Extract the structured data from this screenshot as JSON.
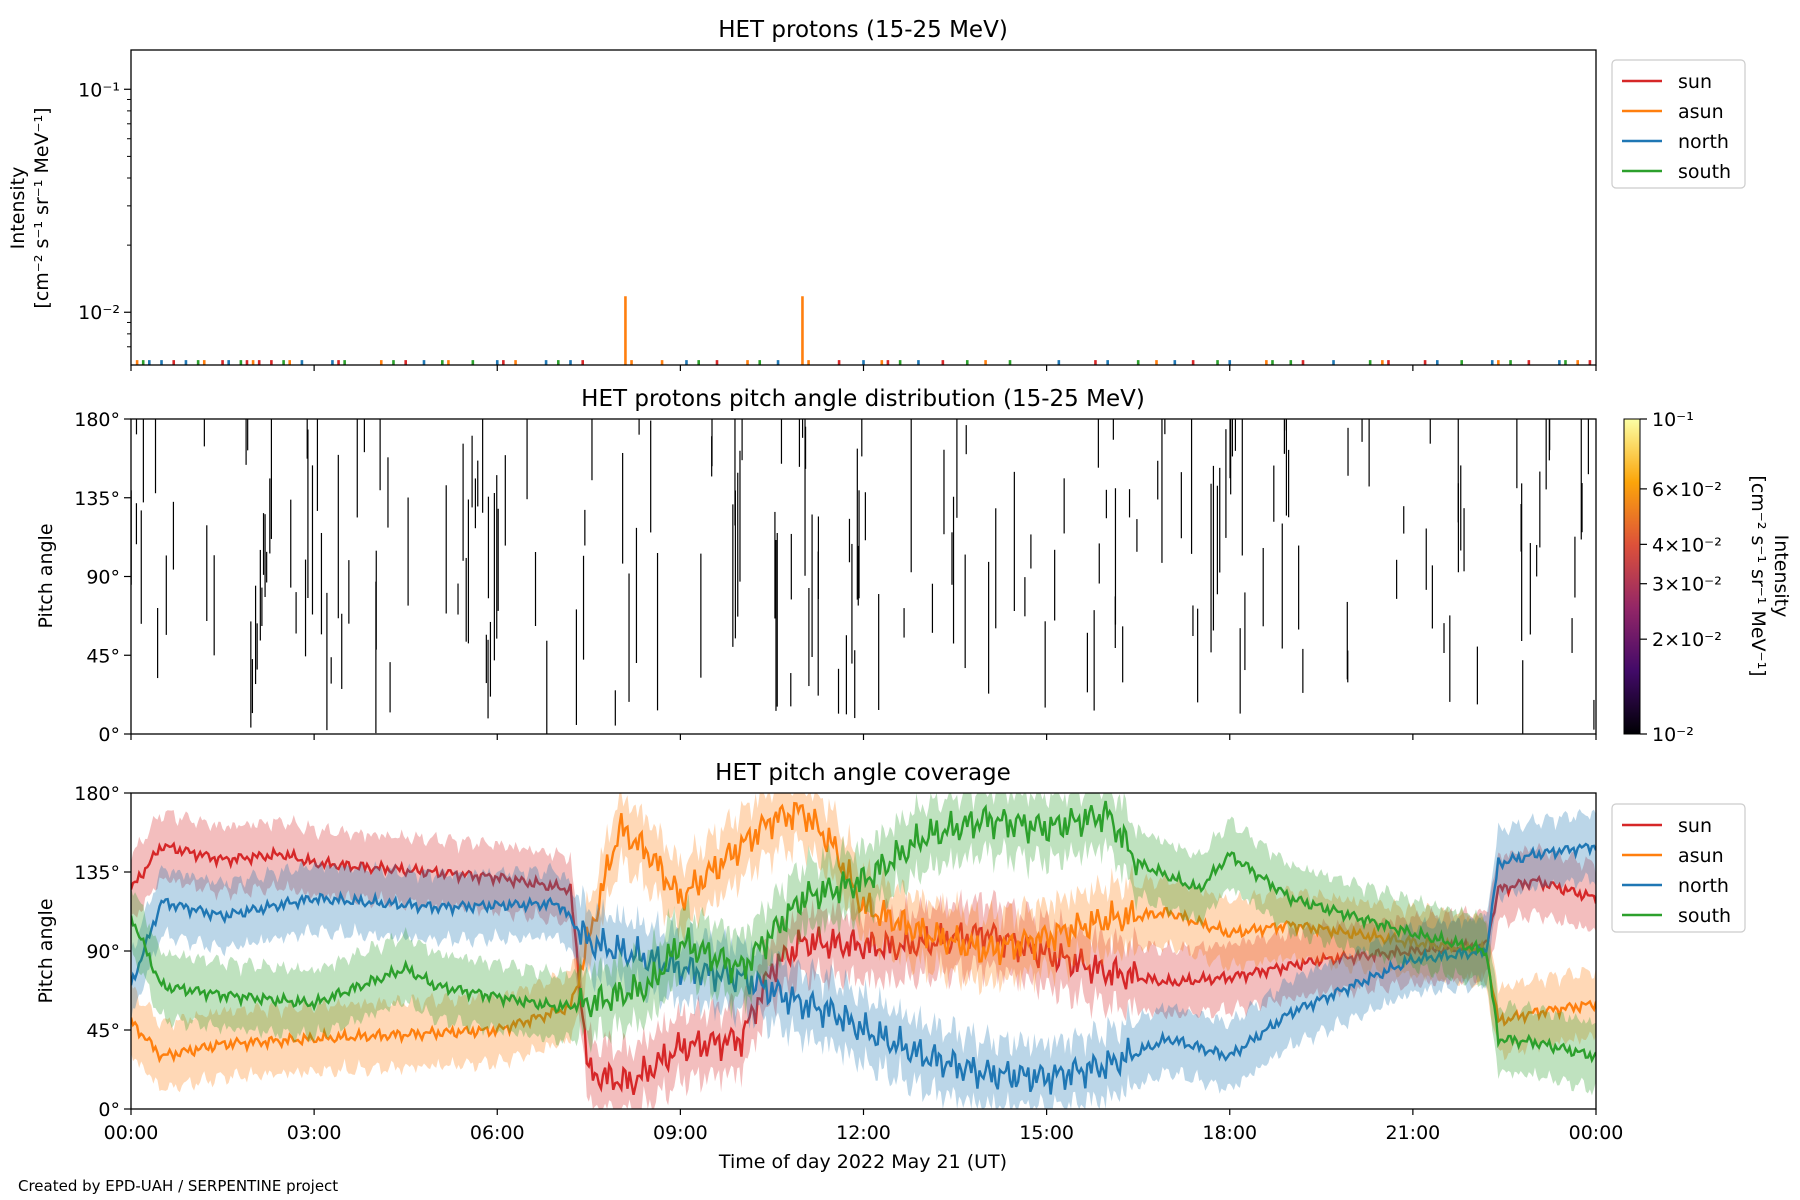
{
  "figure": {
    "xlabel": "Time of day 2022 May 21 (UT)",
    "footer": "Created by EPD-UAH / SERPENTINE project",
    "x_ticks": [
      "00:00",
      "03:00",
      "06:00",
      "09:00",
      "12:00",
      "15:00",
      "18:00",
      "21:00",
      "00:00"
    ],
    "colors": {
      "sun": "#d62728",
      "asun": "#ff7f0e",
      "north": "#1f77b4",
      "south": "#2ca02c"
    }
  },
  "chart_data": [
    {
      "type": "line",
      "title": "HET protons (15-25 MeV)",
      "ylabel_line1": "Intensity",
      "ylabel_line2": "[cm⁻² s⁻¹ sr⁻¹ MeV⁻¹]",
      "yscale": "log",
      "ylim": [
        0.0058,
        0.15
      ],
      "xlim_hours": [
        0,
        24
      ],
      "y_ticks": [
        {
          "value": 0.1,
          "label": "10⁻¹"
        },
        {
          "value": 0.01,
          "label": "10⁻²"
        }
      ],
      "legend": {
        "position": "upper-right-outside",
        "entries": [
          "sun",
          "asun",
          "north",
          "south"
        ]
      },
      "series": [
        {
          "name": "sun",
          "spike_hours": [
            0.7,
            1.5,
            1.9,
            2.1,
            2.3,
            3.4,
            4.5,
            6.1,
            7.4,
            9.6,
            11.6,
            12.4,
            13.3,
            15.8,
            17.4,
            19.2,
            20.6,
            21.2,
            22.9,
            23.9
          ],
          "value": 0.0061
        },
        {
          "name": "asun",
          "spike_hours": [
            0.1,
            1.2,
            2.0,
            2.6,
            4.1,
            5.2,
            6.3,
            8.2,
            8.7,
            10.1,
            11.1,
            12.3,
            14.0,
            16.8,
            18.6,
            20.5,
            22.4,
            23.7
          ],
          "value": 0.0061
        },
        {
          "name": "north",
          "spike_hours": [
            0.3,
            0.5,
            0.9,
            1.6,
            2.8,
            3.3,
            4.8,
            6.0,
            6.8,
            7.2,
            9.1,
            10.6,
            12.0,
            12.9,
            15.2,
            16.0,
            17.1,
            18.0,
            19.7,
            21.4,
            22.3,
            23.4
          ],
          "value": 0.0061
        },
        {
          "name": "south",
          "spike_hours": [
            0.2,
            1.1,
            1.8,
            2.5,
            3.5,
            4.3,
            5.1,
            5.6,
            7.0,
            9.3,
            10.3,
            12.6,
            13.7,
            14.4,
            16.5,
            17.8,
            18.7,
            19.0,
            20.3,
            21.8,
            22.6,
            23.5
          ],
          "value": 0.0061
        },
        {
          "name": "asun_peaks",
          "spike_hours": [
            8.1,
            11.0
          ],
          "value": 0.0118
        }
      ]
    },
    {
      "type": "heatmap",
      "title": "HET protons pitch angle distribution (15-25 MeV)",
      "ylabel": "Pitch angle",
      "ylim": [
        0,
        180
      ],
      "y_ticks": [
        "0°",
        "45°",
        "90°",
        "135°",
        "180°"
      ],
      "colorbar": {
        "label_line1": "Intensity",
        "label_line2": "[cm⁻² s⁻¹ sr⁻¹ MeV⁻¹]",
        "scale": "log",
        "range": [
          0.01,
          0.1
        ],
        "ticks": [
          {
            "value": 0.1,
            "label": "10⁻¹"
          },
          {
            "value": 0.06,
            "label": "6×10⁻²"
          },
          {
            "value": 0.04,
            "label": "4×10⁻²"
          },
          {
            "value": 0.03,
            "label": "3×10⁻²"
          },
          {
            "value": 0.02,
            "label": "2×10⁻²"
          },
          {
            "value": 0.01,
            "label": "10⁻²"
          }
        ],
        "colormap": "inferno"
      },
      "seed": 7
    },
    {
      "type": "area",
      "title": "HET pitch angle coverage",
      "ylabel": "Pitch angle",
      "ylim": [
        0,
        180
      ],
      "y_ticks": [
        "0°",
        "45°",
        "90°",
        "135°",
        "180°"
      ],
      "legend": {
        "position": "upper-right-outside",
        "entries": [
          "sun",
          "asun",
          "north",
          "south"
        ]
      },
      "series": [
        {
          "name": "sun",
          "half_width": 18,
          "keypoints": [
            [
              0,
              125
            ],
            [
              0.5,
              150
            ],
            [
              1.5,
              142
            ],
            [
              2.5,
              145
            ],
            [
              3.0,
              140
            ],
            [
              6.0,
              132
            ],
            [
              7.2,
              125
            ],
            [
              7.5,
              20
            ],
            [
              8.2,
              15
            ],
            [
              9.0,
              35
            ],
            [
              10.0,
              40
            ],
            [
              10.5,
              80
            ],
            [
              11.0,
              95
            ],
            [
              12.5,
              92
            ],
            [
              14.0,
              100
            ],
            [
              15.0,
              88
            ],
            [
              16.0,
              78
            ],
            [
              17.0,
              72
            ],
            [
              18.0,
              75
            ],
            [
              19.5,
              85
            ],
            [
              21.0,
              90
            ],
            [
              22.2,
              93
            ],
            [
              22.4,
              125
            ],
            [
              23.0,
              130
            ],
            [
              24.0,
              120
            ]
          ]
        },
        {
          "name": "asun",
          "half_width": 18,
          "keypoints": [
            [
              0,
              50
            ],
            [
              0.5,
              30
            ],
            [
              1.5,
              37
            ],
            [
              3.0,
              40
            ],
            [
              6.0,
              45
            ],
            [
              7.2,
              58
            ],
            [
              7.6,
              110
            ],
            [
              8.0,
              160
            ],
            [
              8.5,
              145
            ],
            [
              9.0,
              120
            ],
            [
              10.0,
              150
            ],
            [
              10.5,
              165
            ],
            [
              11.0,
              170
            ],
            [
              11.5,
              150
            ],
            [
              12.0,
              115
            ],
            [
              13.0,
              100
            ],
            [
              14.0,
              90
            ],
            [
              15.0,
              98
            ],
            [
              16.0,
              108
            ],
            [
              17.0,
              112
            ],
            [
              18.0,
              100
            ],
            [
              19.0,
              105
            ],
            [
              21.0,
              95
            ],
            [
              22.2,
              90
            ],
            [
              22.4,
              50
            ],
            [
              23.0,
              55
            ],
            [
              24.0,
              60
            ]
          ]
        },
        {
          "name": "north",
          "half_width": 18,
          "keypoints": [
            [
              0,
              70
            ],
            [
              0.5,
              118
            ],
            [
              1.5,
              110
            ],
            [
              3.0,
              120
            ],
            [
              5.0,
              115
            ],
            [
              7.0,
              117
            ],
            [
              7.5,
              95
            ],
            [
              8.5,
              85
            ],
            [
              9.0,
              80
            ],
            [
              10.0,
              75
            ],
            [
              11.0,
              60
            ],
            [
              11.5,
              55
            ],
            [
              12.0,
              45
            ],
            [
              13.0,
              30
            ],
            [
              14.0,
              20
            ],
            [
              15.0,
              18
            ],
            [
              16.0,
              25
            ],
            [
              17.0,
              40
            ],
            [
              18.0,
              30
            ],
            [
              19.0,
              55
            ],
            [
              20.0,
              70
            ],
            [
              21.0,
              85
            ],
            [
              22.2,
              90
            ],
            [
              22.4,
              140
            ],
            [
              23.0,
              145
            ],
            [
              24.0,
              150
            ]
          ]
        },
        {
          "name": "south",
          "half_width": 18,
          "keypoints": [
            [
              0,
              110
            ],
            [
              0.5,
              70
            ],
            [
              1.5,
              65
            ],
            [
              3.0,
              60
            ],
            [
              4.5,
              80
            ],
            [
              5.0,
              70
            ],
            [
              7.0,
              58
            ],
            [
              7.5,
              60
            ],
            [
              8.5,
              70
            ],
            [
              9.0,
              95
            ],
            [
              10.0,
              80
            ],
            [
              11.0,
              120
            ],
            [
              12.0,
              130
            ],
            [
              13.0,
              155
            ],
            [
              14.0,
              165
            ],
            [
              15.0,
              160
            ],
            [
              16.0,
              168
            ],
            [
              16.5,
              140
            ],
            [
              17.5,
              125
            ],
            [
              18.0,
              145
            ],
            [
              19.0,
              120
            ],
            [
              20.0,
              110
            ],
            [
              21.0,
              100
            ],
            [
              22.2,
              90
            ],
            [
              22.4,
              40
            ],
            [
              23.0,
              38
            ],
            [
              24.0,
              30
            ]
          ]
        }
      ]
    }
  ]
}
